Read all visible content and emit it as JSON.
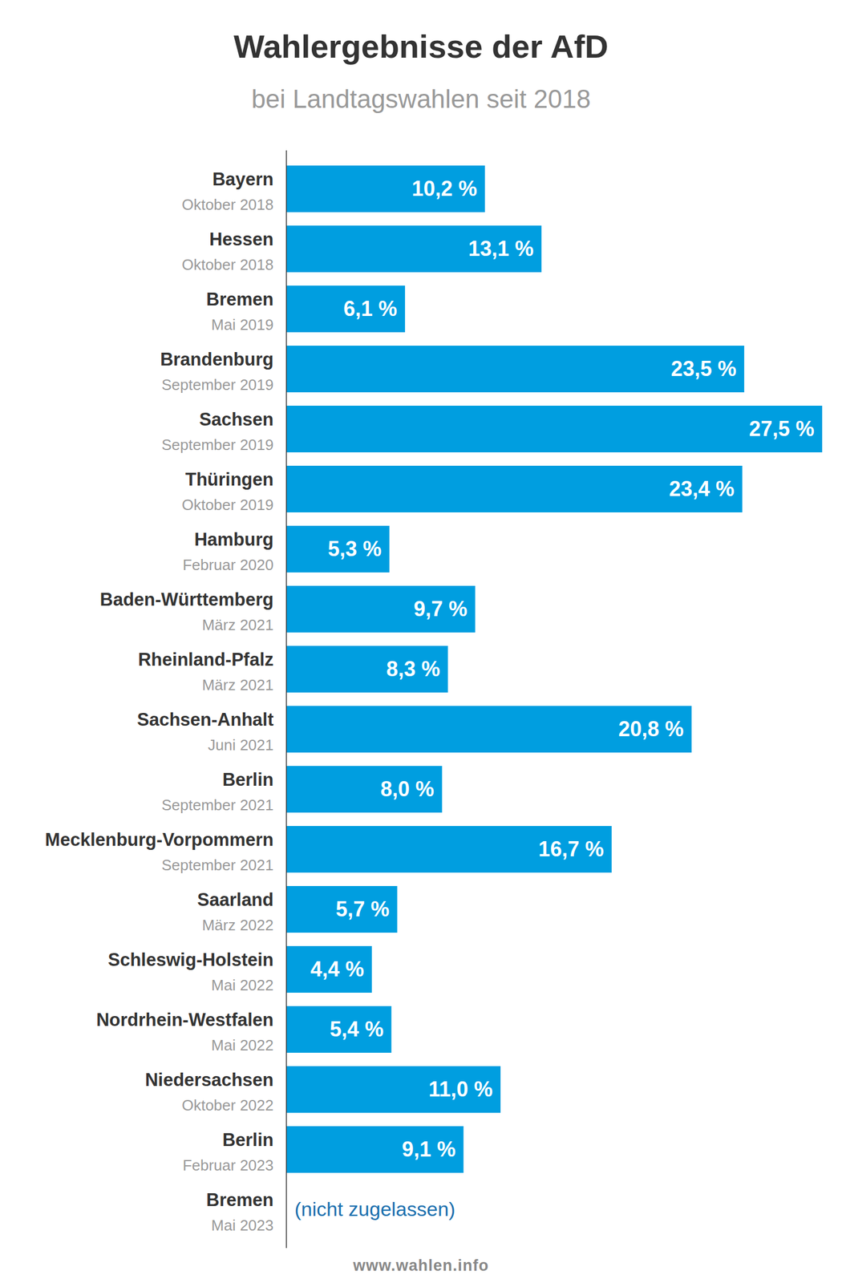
{
  "chart_data": {
    "type": "bar",
    "orientation": "horizontal",
    "title": "Wahlergebnisse der AfD",
    "subtitle": "bei Landtagswahlen seit 2018",
    "source": "www.wahlen.info",
    "categories": [
      "Bayern",
      "Hessen",
      "Bremen",
      "Brandenburg",
      "Sachsen",
      "Thüringen",
      "Hamburg",
      "Baden-Württemberg",
      "Rheinland-Pfalz",
      "Sachsen-Anhalt",
      "Berlin",
      "Mecklenburg-Vorpommern",
      "Saarland",
      "Schleswig-Holstein",
      "Nordrhein-Westfalen",
      "Niedersachsen",
      "Berlin",
      "Bremen"
    ],
    "dates": [
      "Oktober 2018",
      "Oktober 2018",
      "Mai 2019",
      "September 2019",
      "September 2019",
      "Oktober 2019",
      "Februar 2020",
      "März 2021",
      "März 2021",
      "Juni 2021",
      "September 2021",
      "September 2021",
      "März 2022",
      "Mai 2022",
      "Mai 2022",
      "Oktober 2022",
      "Februar 2023",
      "Mai 2023"
    ],
    "values": [
      10.2,
      13.1,
      6.1,
      23.5,
      27.5,
      23.4,
      5.3,
      9.7,
      8.3,
      20.8,
      8.0,
      16.7,
      5.7,
      4.4,
      5.4,
      11.0,
      9.1,
      null
    ],
    "value_labels": [
      "10,2 %",
      "13,1 %",
      "6,1 %",
      "23,5 %",
      "27,5 %",
      "23,4 %",
      "5,3 %",
      "9,7 %",
      "8,3 %",
      "20,8 %",
      "8,0 %",
      "16,7 %",
      "5,7 %",
      "4,4 %",
      "5,4 %",
      "11,0 %",
      "9,1 %",
      "(nicht zugelassen)"
    ],
    "xlim": [
      0,
      27.5
    ],
    "color": "#009ee0",
    "data_labels": true,
    "tick_labels": false,
    "grid": false
  }
}
